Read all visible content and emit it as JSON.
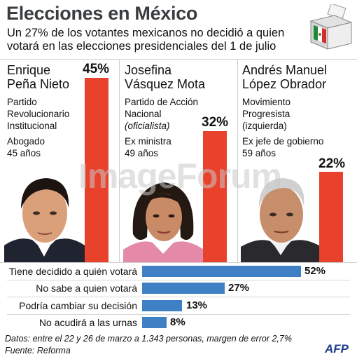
{
  "header": {
    "title": "Elecciones en México",
    "subtitle_line1": "Un 27% de los votantes mexicanos no decidió a quien",
    "subtitle_line2": "votará en las elecciones presidenciales del 1 de julio"
  },
  "candidates": [
    {
      "name_line1": "Enrique",
      "name_line2": "Peña Nieto",
      "party_line1": "Partido",
      "party_line2": "Revolucionario",
      "party_line3": "Institucional",
      "job": "Abogado",
      "age": "45 años",
      "pct_label": "45%"
    },
    {
      "name_line1": "Josefina",
      "name_line2": "Vásquez Mota",
      "party_line1": "Partido de Acción",
      "party_line2": "Nacional",
      "party_line3": "(oficialista)",
      "job": "Ex ministra",
      "age": "49 años",
      "pct_label": "32%"
    },
    {
      "name_line1": "Andrés Manuel",
      "name_line2": "López Obrador",
      "party_line1": "Movimiento",
      "party_line2": "Progresista",
      "party_line3": "(izquierda)",
      "job": "Ex jefe de gobierno",
      "age": "59 años",
      "pct_label": "22%"
    }
  ],
  "chart_data": [
    {
      "type": "bar",
      "categories": [
        "Enrique Peña Nieto",
        "Josefina Vásquez Mota",
        "Andrés Manuel López Obrador"
      ],
      "values": [
        45,
        32,
        22
      ],
      "data_labels": [
        "45%",
        "32%",
        "22%"
      ],
      "color": "#e8412c"
    },
    {
      "type": "bar",
      "orientation": "horizontal",
      "categories": [
        "Tiene decidido a quién votará",
        "No sabe a quien votará",
        "Podría cambiar su decisión",
        "No acudirá a las urnas"
      ],
      "values": [
        52,
        27,
        13,
        8
      ],
      "data_labels": [
        "52%",
        "27%",
        "13%",
        "8%"
      ],
      "color": "#3f7fc4"
    }
  ],
  "footer": {
    "note": "Datos: entre el 22 y 26 de marzo a 1.343 personas, margen de error 2,7%",
    "source": "Fuente: Reforma",
    "agency": "AFP"
  },
  "watermark": "ImageForum"
}
